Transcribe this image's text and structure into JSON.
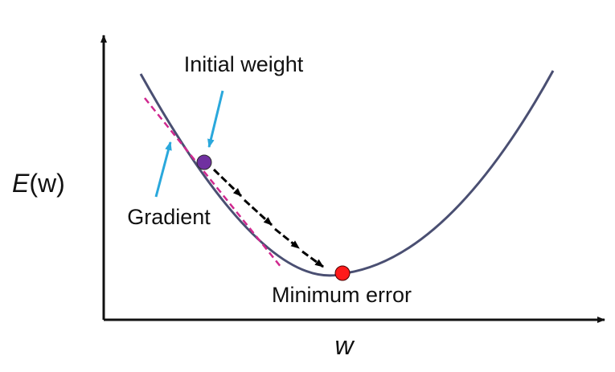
{
  "diagram": {
    "y_axis_label": {
      "italic": "E",
      "rest": "(w)"
    },
    "x_axis_label": "w",
    "annotations": {
      "initial_weight": "Initial weight",
      "gradient": "Gradient",
      "minimum_error": "Minimum error"
    },
    "colors": {
      "axis": "#111111",
      "curve": "#4a4f72",
      "tangent": "#d0288f",
      "pointer_arrow": "#2aa8dc",
      "step_arrow": "#000000",
      "initial_point": "#7030a0",
      "minimum_point": "#ff0000"
    },
    "step_arrow_count": 4,
    "icons": {
      "initial_point": "purple-dot-icon",
      "minimum_point": "red-dot-icon"
    }
  }
}
